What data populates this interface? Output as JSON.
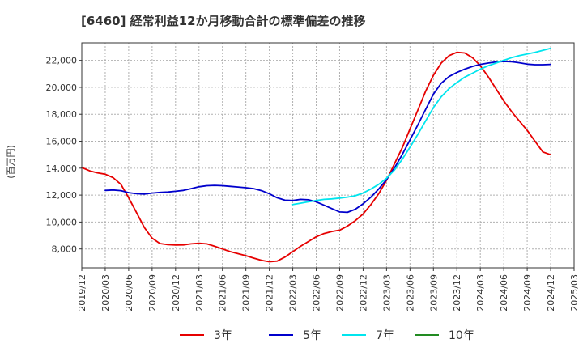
{
  "chart_data": {
    "type": "line",
    "title": "[6460]  経常利益12か月移動合計の標準偏差の推移",
    "ylabel": "(百万円)",
    "xlabel": "",
    "ylim": [
      6600,
      23300
    ],
    "xlim": [
      "2019-12",
      "2025-03"
    ],
    "grid": true,
    "legend_position": "bottom",
    "y_ticks": [
      8000,
      10000,
      12000,
      14000,
      16000,
      18000,
      20000,
      22000
    ],
    "y_tick_labels": [
      "8,000",
      "10,000",
      "12,000",
      "14,000",
      "16,000",
      "18,000",
      "20,000",
      "22,000"
    ],
    "x_ticks": [
      "2019-12",
      "2020-03",
      "2020-06",
      "2020-09",
      "2020-12",
      "2021-03",
      "2021-06",
      "2021-09",
      "2021-12",
      "2022-03",
      "2022-06",
      "2022-09",
      "2022-12",
      "2023-03",
      "2023-06",
      "2023-09",
      "2023-12",
      "2024-03",
      "2024-06",
      "2024-09",
      "2024-12",
      "2025-03"
    ],
    "x_tick_labels": [
      "2019/12",
      "2020/03",
      "2020/06",
      "2020/09",
      "2020/12",
      "2021/03",
      "2021/06",
      "2021/09",
      "2021/12",
      "2022/03",
      "2022/06",
      "2022/09",
      "2022/12",
      "2023/03",
      "2023/06",
      "2023/09",
      "2023/12",
      "2024/03",
      "2024/06",
      "2024/09",
      "2024/12",
      "2025/03"
    ],
    "series": [
      {
        "name": "3年",
        "color": "#e60000",
        "points": [
          [
            "2019-12",
            14050
          ],
          [
            "2020-01",
            13800
          ],
          [
            "2020-02",
            13650
          ],
          [
            "2020-03",
            13550
          ],
          [
            "2020-04",
            13300
          ],
          [
            "2020-05",
            12800
          ],
          [
            "2020-06",
            11800
          ],
          [
            "2020-07",
            10700
          ],
          [
            "2020-08",
            9600
          ],
          [
            "2020-09",
            8800
          ],
          [
            "2020-10",
            8400
          ],
          [
            "2020-11",
            8320
          ],
          [
            "2020-12",
            8290
          ],
          [
            "2021-01",
            8300
          ],
          [
            "2021-02",
            8380
          ],
          [
            "2021-03",
            8420
          ],
          [
            "2021-04",
            8380
          ],
          [
            "2021-05",
            8200
          ],
          [
            "2021-06",
            8000
          ],
          [
            "2021-07",
            7800
          ],
          [
            "2021-08",
            7650
          ],
          [
            "2021-09",
            7500
          ],
          [
            "2021-10",
            7320
          ],
          [
            "2021-11",
            7150
          ],
          [
            "2021-12",
            7050
          ],
          [
            "2022-01",
            7100
          ],
          [
            "2022-02",
            7400
          ],
          [
            "2022-03",
            7800
          ],
          [
            "2022-04",
            8200
          ],
          [
            "2022-05",
            8550
          ],
          [
            "2022-06",
            8900
          ],
          [
            "2022-07",
            9150
          ],
          [
            "2022-08",
            9300
          ],
          [
            "2022-09",
            9400
          ],
          [
            "2022-10",
            9700
          ],
          [
            "2022-11",
            10100
          ],
          [
            "2022-12",
            10600
          ],
          [
            "2023-01",
            11300
          ],
          [
            "2023-02",
            12100
          ],
          [
            "2023-03",
            13100
          ],
          [
            "2023-04",
            14300
          ],
          [
            "2023-05",
            15500
          ],
          [
            "2023-06",
            16900
          ],
          [
            "2023-07",
            18300
          ],
          [
            "2023-08",
            19700
          ],
          [
            "2023-09",
            20900
          ],
          [
            "2023-10",
            21800
          ],
          [
            "2023-11",
            22350
          ],
          [
            "2023-12",
            22600
          ],
          [
            "2024-01",
            22550
          ],
          [
            "2024-02",
            22200
          ],
          [
            "2024-03",
            21600
          ],
          [
            "2024-04",
            20800
          ],
          [
            "2024-05",
            19900
          ],
          [
            "2024-06",
            19000
          ],
          [
            "2024-07",
            18200
          ],
          [
            "2024-08",
            17500
          ],
          [
            "2024-09",
            16800
          ],
          [
            "2024-10",
            16000
          ],
          [
            "2024-11",
            15200
          ],
          [
            "2024-12",
            15000
          ]
        ]
      },
      {
        "name": "5年",
        "color": "#0000cc",
        "points": [
          [
            "2020-03",
            12350
          ],
          [
            "2020-04",
            12380
          ],
          [
            "2020-05",
            12330
          ],
          [
            "2020-06",
            12180
          ],
          [
            "2020-07",
            12100
          ],
          [
            "2020-08",
            12080
          ],
          [
            "2020-09",
            12150
          ],
          [
            "2020-10",
            12200
          ],
          [
            "2020-11",
            12230
          ],
          [
            "2020-12",
            12280
          ],
          [
            "2021-01",
            12350
          ],
          [
            "2021-02",
            12480
          ],
          [
            "2021-03",
            12620
          ],
          [
            "2021-04",
            12700
          ],
          [
            "2021-05",
            12720
          ],
          [
            "2021-06",
            12700
          ],
          [
            "2021-07",
            12650
          ],
          [
            "2021-08",
            12600
          ],
          [
            "2021-09",
            12550
          ],
          [
            "2021-10",
            12480
          ],
          [
            "2021-11",
            12330
          ],
          [
            "2021-12",
            12100
          ],
          [
            "2022-01",
            11800
          ],
          [
            "2022-02",
            11620
          ],
          [
            "2022-03",
            11600
          ],
          [
            "2022-04",
            11680
          ],
          [
            "2022-05",
            11650
          ],
          [
            "2022-06",
            11500
          ],
          [
            "2022-07",
            11250
          ],
          [
            "2022-08",
            11000
          ],
          [
            "2022-09",
            10750
          ],
          [
            "2022-10",
            10720
          ],
          [
            "2022-11",
            10950
          ],
          [
            "2022-12",
            11350
          ],
          [
            "2023-01",
            11850
          ],
          [
            "2023-02",
            12450
          ],
          [
            "2023-03",
            13150
          ],
          [
            "2023-04",
            14000
          ],
          [
            "2023-05",
            15000
          ],
          [
            "2023-06",
            16100
          ],
          [
            "2023-07",
            17200
          ],
          [
            "2023-08",
            18350
          ],
          [
            "2023-09",
            19500
          ],
          [
            "2023-10",
            20300
          ],
          [
            "2023-11",
            20800
          ],
          [
            "2023-12",
            21100
          ],
          [
            "2024-01",
            21350
          ],
          [
            "2024-02",
            21550
          ],
          [
            "2024-03",
            21700
          ],
          [
            "2024-04",
            21800
          ],
          [
            "2024-05",
            21880
          ],
          [
            "2024-06",
            21920
          ],
          [
            "2024-07",
            21900
          ],
          [
            "2024-08",
            21820
          ],
          [
            "2024-09",
            21720
          ],
          [
            "2024-10",
            21680
          ],
          [
            "2024-11",
            21680
          ],
          [
            "2024-12",
            21700
          ]
        ]
      },
      {
        "name": "7年",
        "color": "#00e5ee",
        "points": [
          [
            "2022-03",
            11300
          ],
          [
            "2022-04",
            11400
          ],
          [
            "2022-05",
            11500
          ],
          [
            "2022-06",
            11600
          ],
          [
            "2022-07",
            11680
          ],
          [
            "2022-08",
            11720
          ],
          [
            "2022-09",
            11780
          ],
          [
            "2022-10",
            11850
          ],
          [
            "2022-11",
            11950
          ],
          [
            "2022-12",
            12150
          ],
          [
            "2023-01",
            12450
          ],
          [
            "2023-02",
            12800
          ],
          [
            "2023-03",
            13250
          ],
          [
            "2023-04",
            13850
          ],
          [
            "2023-05",
            14650
          ],
          [
            "2023-06",
            15550
          ],
          [
            "2023-07",
            16500
          ],
          [
            "2023-08",
            17500
          ],
          [
            "2023-09",
            18500
          ],
          [
            "2023-10",
            19300
          ],
          [
            "2023-11",
            19900
          ],
          [
            "2023-12",
            20350
          ],
          [
            "2024-01",
            20750
          ],
          [
            "2024-02",
            21050
          ],
          [
            "2024-03",
            21350
          ],
          [
            "2024-04",
            21600
          ],
          [
            "2024-05",
            21800
          ],
          [
            "2024-06",
            22000
          ],
          [
            "2024-07",
            22200
          ],
          [
            "2024-08",
            22350
          ],
          [
            "2024-09",
            22480
          ],
          [
            "2024-10",
            22600
          ],
          [
            "2024-11",
            22750
          ],
          [
            "2024-12",
            22900
          ]
        ]
      },
      {
        "name": "10年",
        "color": "#228b22",
        "points": []
      }
    ]
  }
}
